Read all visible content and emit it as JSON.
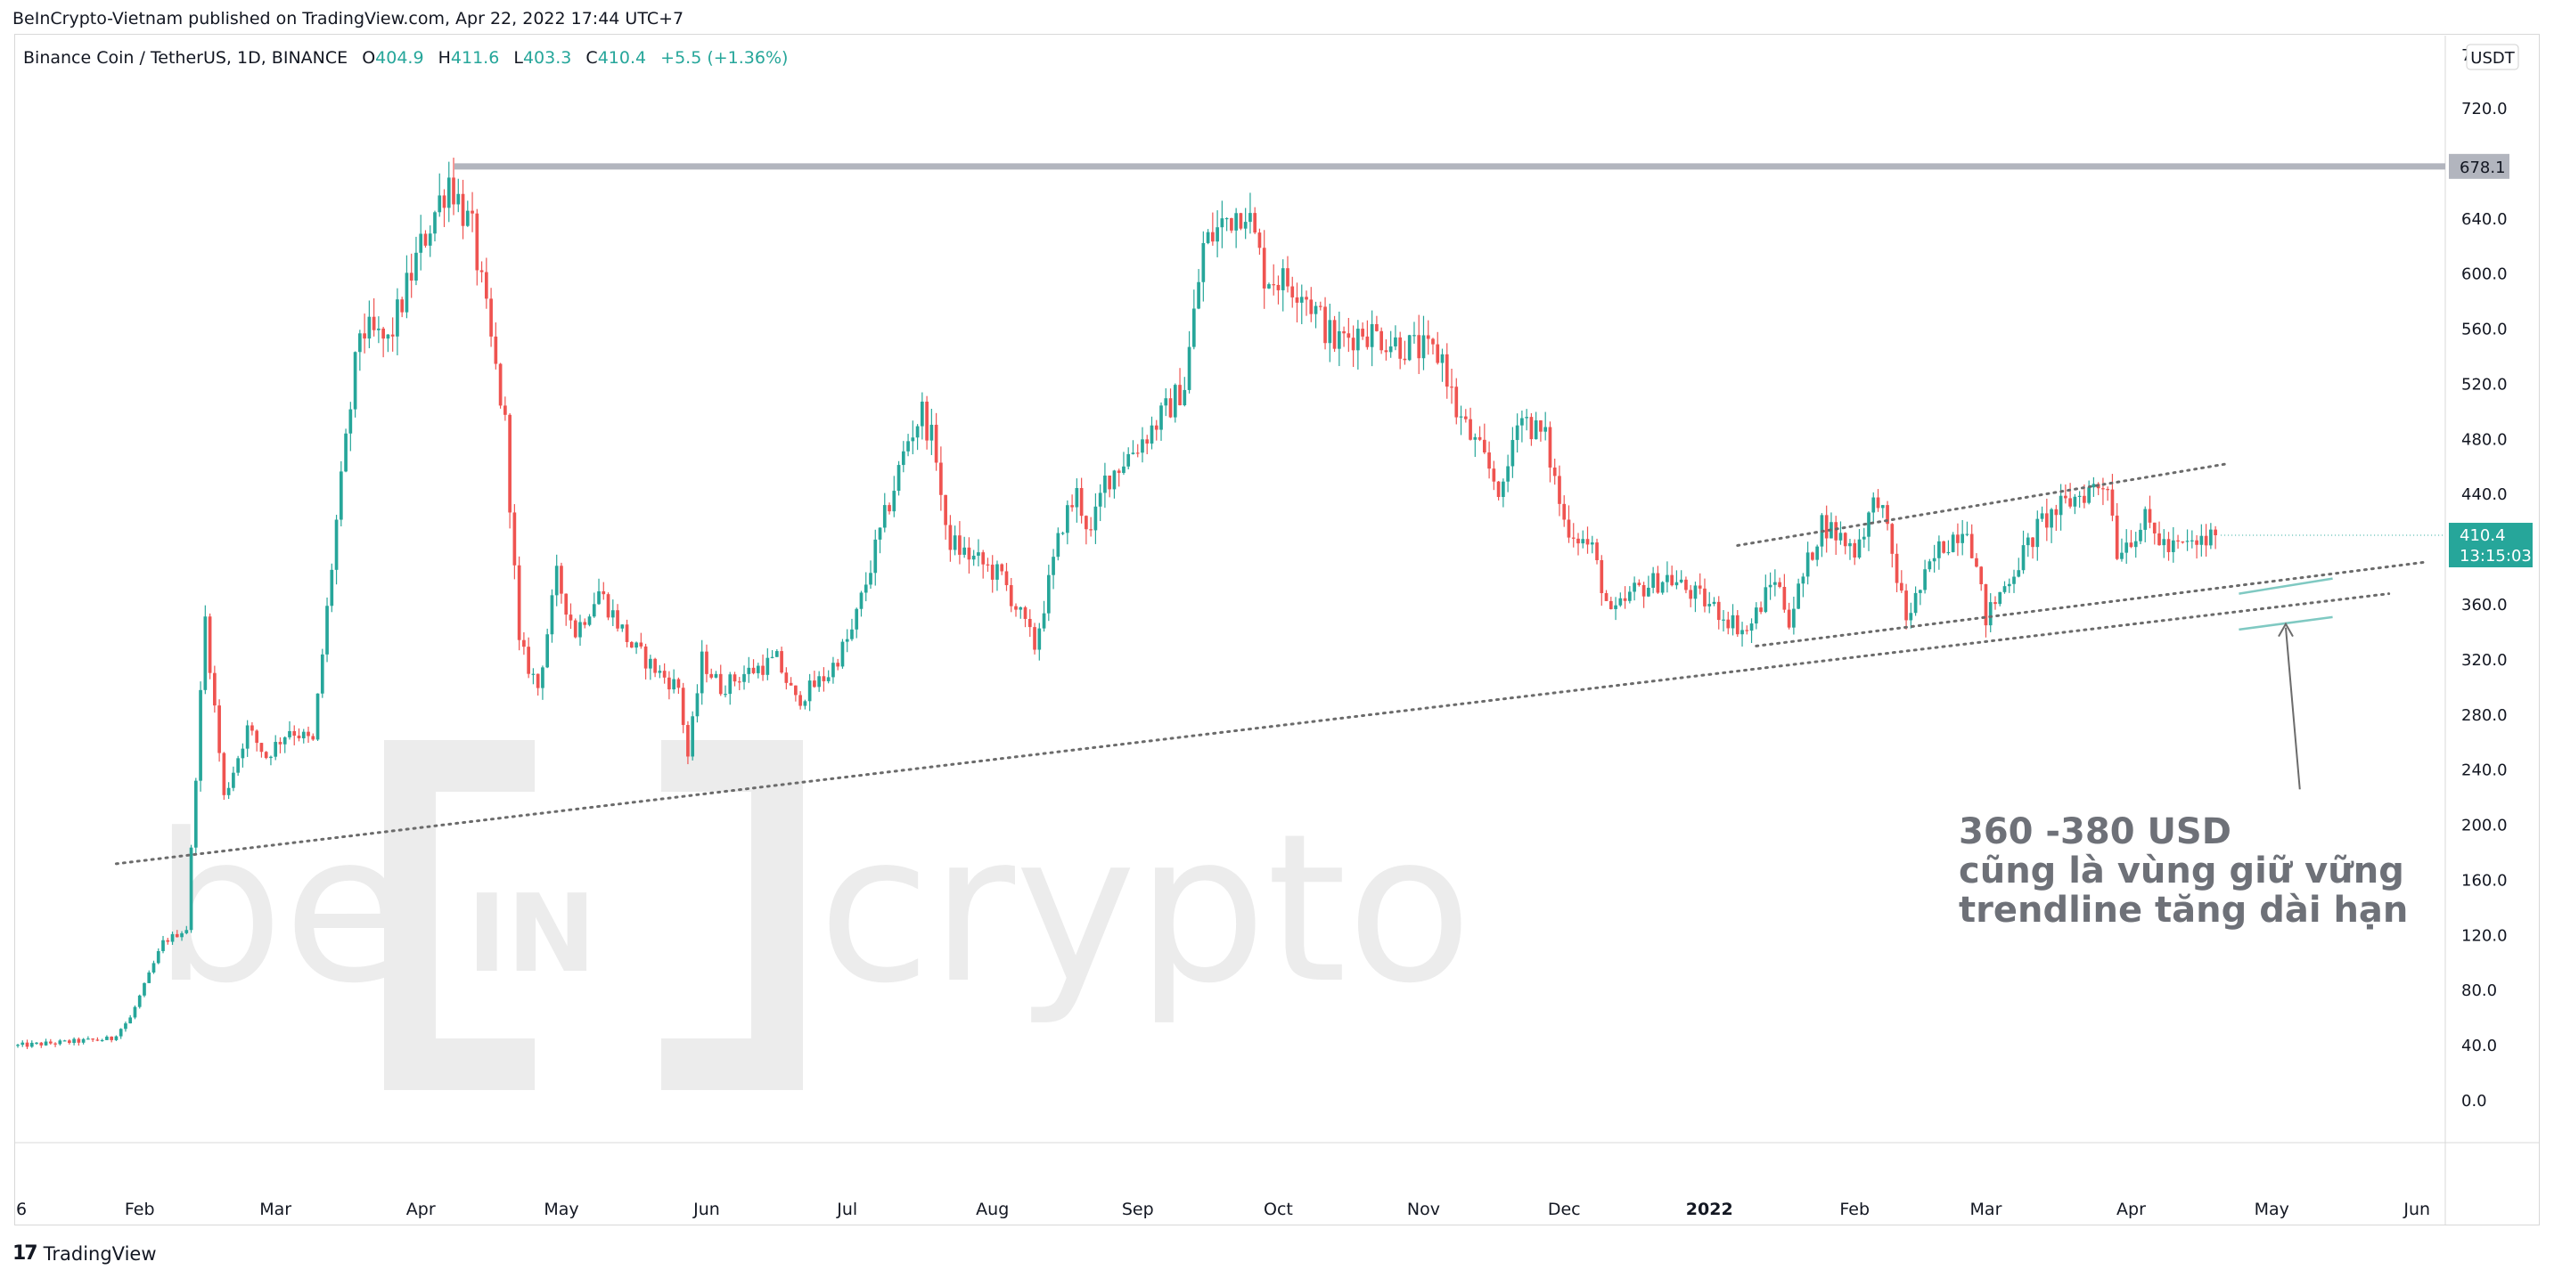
{
  "header": {
    "published": "BeInCrypto-Vietnam published on TradingView.com, Apr 22, 2022 17:44 UTC+7",
    "symbol": "Binance Coin / TetherUS, 1D, BINANCE",
    "ohlc": {
      "o_label": "O",
      "o": "404.9",
      "h_label": "H",
      "h": "411.6",
      "l_label": "L",
      "l": "403.3",
      "c_label": "C",
      "c": "410.4",
      "change": "+5.5 (+1.36%)"
    }
  },
  "price_scale": {
    "currency": "USDT",
    "top_partial": "7",
    "ticks": [
      "720.0",
      "640.0",
      "600.0",
      "560.0",
      "520.0",
      "480.0",
      "440.0",
      "360.0",
      "320.0",
      "280.0",
      "240.0",
      "200.0",
      "160.0",
      "120.0",
      "80.0",
      "40.0",
      "0.0"
    ],
    "resistance_label": "678.1",
    "last_price_label": "410.4",
    "countdown_label": "13:15:03"
  },
  "colors": {
    "up": "#26a69a",
    "down": "#ef5350",
    "resistance": "#b2b5be",
    "trendline": "#6b6b6b",
    "last_price": "#26a69a",
    "watermark": "#ececec"
  },
  "watermark": {
    "be": "be",
    "in": "IN",
    "crypto": "crypto"
  },
  "annotation": {
    "line1": "360 -380 USD",
    "line2": "cũng là vùng giữ vững",
    "line3": "trendline tăng dài hạn"
  },
  "footer": {
    "brand": "TradingView"
  },
  "chart_data": {
    "type": "candlestick",
    "title": "Binance Coin / TetherUS, 1D, BINANCE",
    "xlabel": "",
    "ylabel": "",
    "ylim": [
      -20,
      760
    ],
    "grid": false,
    "x_tick_labels": [
      "6",
      "Feb",
      "Mar",
      "Apr",
      "May",
      "Jun",
      "Jul",
      "Aug",
      "Sep",
      "Oct",
      "Nov",
      "Dec",
      "2022",
      "Feb",
      "Mar",
      "Apr",
      "May",
      "Jun"
    ],
    "x_ticks_bold": [
      "2022"
    ],
    "x_range_days": [
      0,
      515
    ],
    "x_tick_days": [
      0,
      26,
      55,
      86,
      116,
      147,
      177,
      208,
      239,
      269,
      300,
      330,
      361,
      392,
      420,
      451,
      481,
      512
    ],
    "close_path_days": [
      0,
      20,
      24,
      31,
      36,
      40,
      44,
      49,
      53,
      58,
      63,
      68,
      73,
      79,
      86,
      92,
      97,
      104,
      107,
      111,
      115,
      119,
      124,
      131,
      137,
      141,
      143,
      146,
      150,
      155,
      162,
      166,
      173,
      178,
      183,
      190,
      193,
      196,
      198,
      201,
      210,
      217,
      223,
      226,
      229,
      232,
      240,
      245,
      249,
      253,
      258,
      262,
      266,
      274,
      281,
      287,
      294,
      304,
      307,
      312,
      317,
      320,
      326,
      330,
      336,
      340,
      345,
      352,
      361,
      369,
      375,
      378,
      385,
      392,
      397,
      403,
      410,
      416,
      420,
      425,
      432,
      440,
      446,
      448,
      454,
      459,
      466,
      469
    ],
    "close_path_values": [
      40,
      45,
      60,
      115,
      125,
      350,
      220,
      270,
      250,
      270,
      260,
      420,
      560,
      550,
      620,
      670,
      630,
      490,
      330,
      300,
      380,
      340,
      370,
      330,
      310,
      300,
      250,
      320,
      300,
      310,
      320,
      290,
      310,
      340,
      400,
      480,
      500,
      470,
      410,
      400,
      380,
      330,
      420,
      440,
      410,
      450,
      480,
      500,
      520,
      620,
      640,
      650,
      600,
      590,
      550,
      560,
      550,
      540,
      500,
      470,
      440,
      500,
      480,
      420,
      400,
      350,
      370,
      380,
      360,
      340,
      380,
      350,
      420,
      400,
      440,
      350,
      400,
      420,
      350,
      380,
      420,
      440,
      450,
      400,
      420,
      400,
      404.9,
      410.4
    ],
    "levels": [
      {
        "type": "horizontal",
        "value": 678.1
      }
    ],
    "trendlines": [
      {
        "style": "dotted",
        "from": {
          "day": 21,
          "value": 172
        },
        "to": {
          "day": 506,
          "value": 368
        }
      },
      {
        "style": "dotted",
        "from": {
          "day": 367,
          "value": 403
        },
        "to": {
          "day": 471,
          "value": 462
        }
      },
      {
        "style": "dotted",
        "from": {
          "day": 371,
          "value": 330
        },
        "to": {
          "day": 514,
          "value": 391
        }
      },
      {
        "style": "solid",
        "from": {
          "day": 474,
          "value": 342
        },
        "to": {
          "day": 494,
          "value": 351
        }
      },
      {
        "style": "solid",
        "from": {
          "day": 474,
          "value": 368
        },
        "to": {
          "day": 494,
          "value": 379
        }
      }
    ],
    "arrow": {
      "from": {
        "day": 487,
        "value": 226
      },
      "to": {
        "day": 484,
        "value": 346
      }
    }
  }
}
